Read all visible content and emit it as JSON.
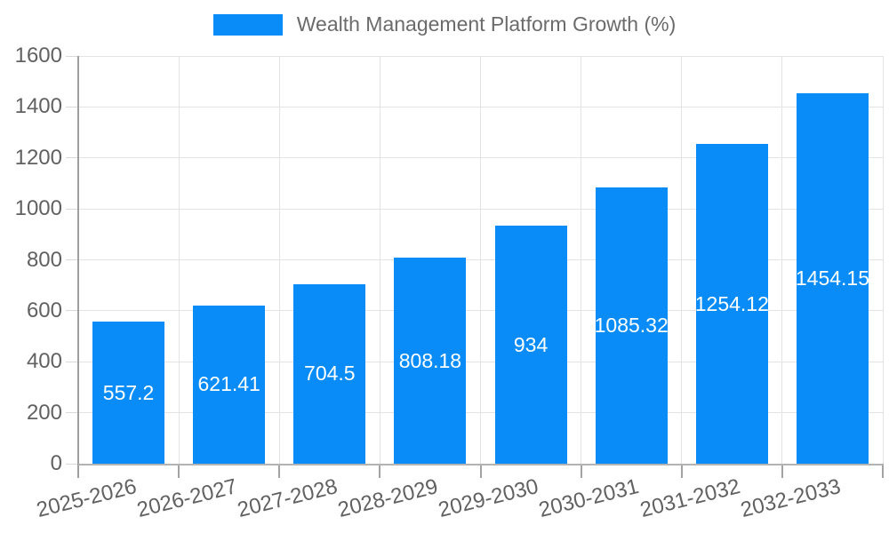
{
  "chart_data": {
    "type": "bar",
    "title": "Wealth Management Platform Growth (%)",
    "categories": [
      "2025-2026",
      "2026-2027",
      "2027-2028",
      "2028-2029",
      "2029-2030",
      "2030-2031",
      "2031-2032",
      "2032-2033"
    ],
    "values": [
      557.2,
      621.41,
      704.5,
      808.18,
      934,
      1085.32,
      1254.12,
      1454.15
    ],
    "xlabel": "",
    "ylabel": "",
    "ylim": [
      0,
      1600
    ],
    "ytick_step": 200,
    "yticks": [
      0,
      200,
      400,
      600,
      800,
      1000,
      1200,
      1400,
      1600
    ],
    "grid": true,
    "legend_position": "top",
    "bar_label_position": "inside-center",
    "colors": {
      "bar": "#0a8cf8",
      "bar_label": "#ffffff",
      "axis_text": "#616161",
      "legend_text": "#6b6b6b",
      "gridline": "#e3e3e3",
      "axis_line": "#9e9e9e"
    }
  }
}
